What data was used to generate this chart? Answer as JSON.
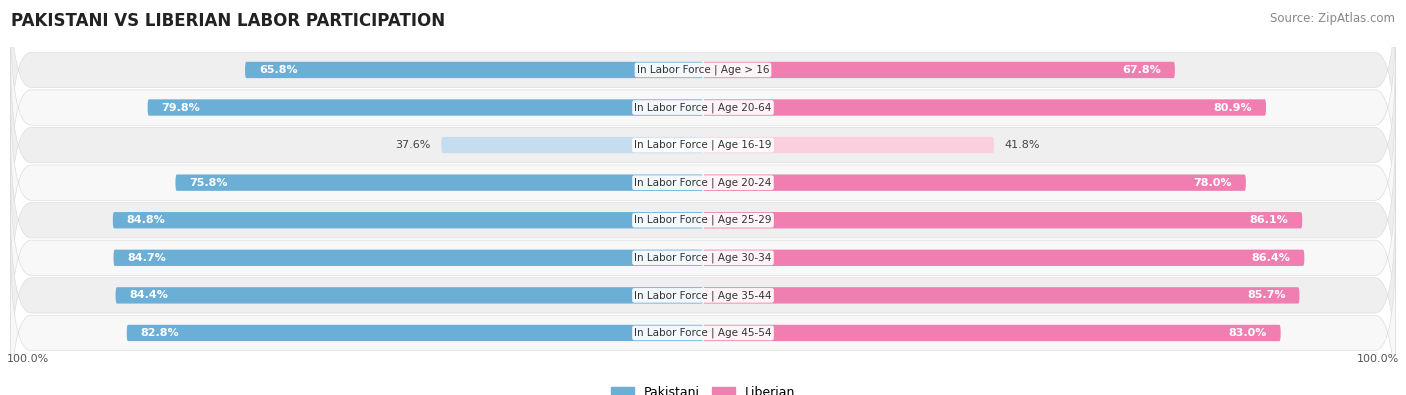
{
  "title": "PAKISTANI VS LIBERIAN LABOR PARTICIPATION",
  "source": "Source: ZipAtlas.com",
  "categories": [
    "In Labor Force | Age > 16",
    "In Labor Force | Age 20-64",
    "In Labor Force | Age 16-19",
    "In Labor Force | Age 20-24",
    "In Labor Force | Age 25-29",
    "In Labor Force | Age 30-34",
    "In Labor Force | Age 35-44",
    "In Labor Force | Age 45-54"
  ],
  "pakistani": [
    65.8,
    79.8,
    37.6,
    75.8,
    84.8,
    84.7,
    84.4,
    82.8
  ],
  "liberian": [
    67.8,
    80.9,
    41.8,
    78.0,
    86.1,
    86.4,
    85.7,
    83.0
  ],
  "pakistani_color": "#6BAED6",
  "liberian_color": "#F07EB0",
  "pakistani_light": "#C6DCEF",
  "liberian_light": "#FBCFE0",
  "row_colors": [
    "#EFEFEF",
    "#F8F8F8"
  ],
  "bar_height": 0.58,
  "legend_pakistani": "Pakistani",
  "legend_liberian": "Liberian",
  "title_fontsize": 12,
  "source_fontsize": 8.5,
  "label_fontsize": 8,
  "cat_fontsize": 7.5,
  "axis_label_fontsize": 8
}
